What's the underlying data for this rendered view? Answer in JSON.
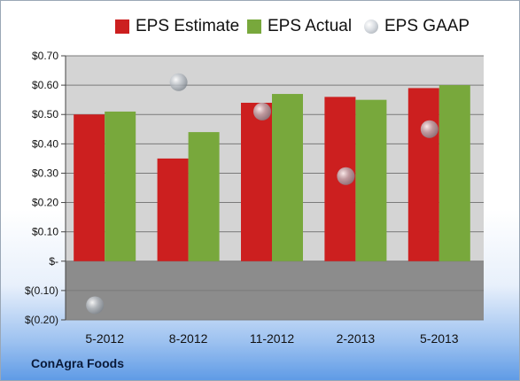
{
  "colors": {
    "estimate": "#cc1f1f",
    "actual": "#78a83c",
    "gaap": "#b8bec7",
    "plot_positive": "#d4d4d4",
    "plot_negative": "#8c8c8c",
    "grid": "#7a7a7a"
  },
  "legend": [
    {
      "label": "EPS Estimate",
      "color_key": "estimate",
      "shape": "square"
    },
    {
      "label": "EPS Actual",
      "color_key": "actual",
      "shape": "square"
    },
    {
      "label": "EPS GAAP",
      "color_key": "gaap",
      "shape": "circle"
    }
  ],
  "footer": {
    "company": "ConAgra Foods"
  },
  "chart_data": {
    "type": "bar",
    "categories": [
      "5-2012",
      "8-2012",
      "11-2012",
      "2-2013",
      "5-2013"
    ],
    "series": [
      {
        "name": "EPS Estimate",
        "type": "bar",
        "values": [
          0.5,
          0.35,
          0.54,
          0.56,
          0.59
        ]
      },
      {
        "name": "EPS Actual",
        "type": "bar",
        "values": [
          0.51,
          0.44,
          0.57,
          0.55,
          0.6
        ]
      },
      {
        "name": "EPS GAAP",
        "type": "scatter",
        "values": [
          -0.15,
          0.61,
          0.51,
          0.29,
          0.45
        ]
      }
    ],
    "ylim": [
      -0.2,
      0.7
    ],
    "y_ticks": [
      {
        "value": 0.7,
        "label": "$0.70"
      },
      {
        "value": 0.6,
        "label": "$0.60"
      },
      {
        "value": 0.5,
        "label": "$0.50"
      },
      {
        "value": 0.4,
        "label": "$0.40"
      },
      {
        "value": 0.3,
        "label": "$0.30"
      },
      {
        "value": 0.2,
        "label": "$0.20"
      },
      {
        "value": 0.1,
        "label": "$0.10"
      },
      {
        "value": 0.0,
        "label": "$-"
      },
      {
        "value": -0.1,
        "label": "$(0.10)"
      },
      {
        "value": -0.2,
        "label": "$(0.20)"
      }
    ],
    "grid": true,
    "legend_position": "top"
  }
}
